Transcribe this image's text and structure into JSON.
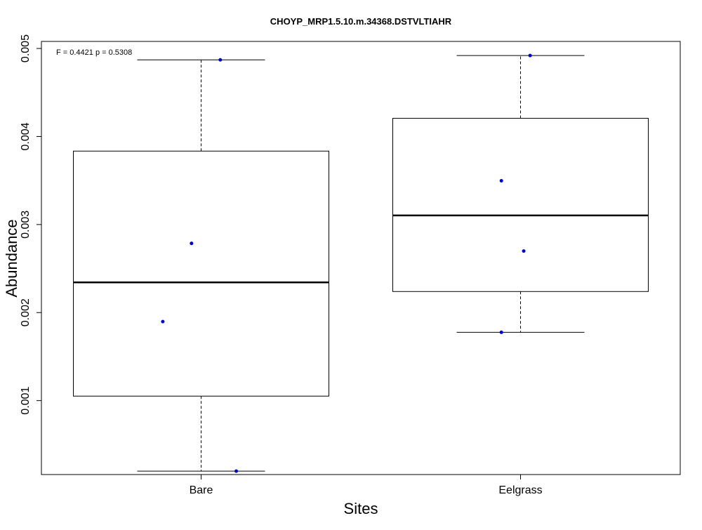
{
  "chart_data": {
    "type": "box",
    "title": "CHOYP_MRP1.5.10.m.34368.DSTVLTIAHR",
    "xlabel": "Sites",
    "ylabel": "Abundance",
    "annotation": "F = 0.4421 p = 0.5308",
    "categories": [
      "Bare",
      "Eelgrass"
    ],
    "ylim": [
      0.00016,
      0.00508
    ],
    "yticks": [
      0.001,
      0.002,
      0.003,
      0.004,
      0.005
    ],
    "ytick_labels": [
      "0.001",
      "0.002",
      "0.003",
      "0.004",
      "0.005"
    ],
    "grid": false,
    "boxes": [
      {
        "name": "Bare",
        "whisker_low": 0.000199,
        "q1": 0.001051,
        "median": 0.002343,
        "q3": 0.003834,
        "whisker_high": 0.004871
      },
      {
        "name": "Eelgrass",
        "whisker_low": 0.001776,
        "q1": 0.002239,
        "median": 0.003103,
        "q3": 0.004207,
        "whisker_high": 0.00492
      }
    ],
    "points": [
      {
        "category": "Bare",
        "y": 0.004871,
        "jitter": 0.06
      },
      {
        "category": "Bare",
        "y": 0.002786,
        "jitter": -0.03
      },
      {
        "category": "Bare",
        "y": 0.001897,
        "jitter": -0.12
      },
      {
        "category": "Bare",
        "y": 0.000199,
        "jitter": 0.11
      },
      {
        "category": "Eelgrass",
        "y": 0.00492,
        "jitter": 0.03
      },
      {
        "category": "Eelgrass",
        "y": 0.003497,
        "jitter": -0.06
      },
      {
        "category": "Eelgrass",
        "y": 0.002699,
        "jitter": 0.01
      },
      {
        "category": "Eelgrass",
        "y": 0.001776,
        "jitter": -0.06
      }
    ],
    "colors": {
      "points": "#0000CD",
      "box_line": "#000000"
    }
  }
}
